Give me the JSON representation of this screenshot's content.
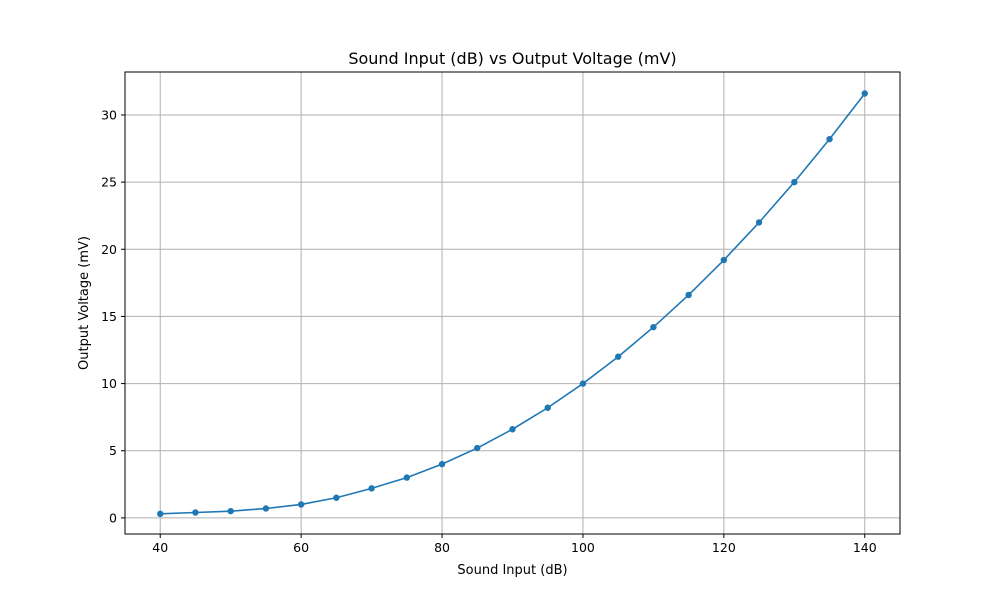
{
  "chart_data": {
    "type": "line",
    "title": "Sound Input (dB) vs Output Voltage (mV)",
    "xlabel": "Sound Input (dB)",
    "ylabel": "Output Voltage (mV)",
    "xlim": [
      35,
      145
    ],
    "ylim": [
      -1.2,
      33.2
    ],
    "xticks": [
      40,
      60,
      80,
      100,
      120,
      140
    ],
    "yticks": [
      0,
      5,
      10,
      15,
      20,
      25,
      30
    ],
    "grid": true,
    "color": "#1f77b4",
    "series": [
      {
        "x": [
          40,
          45,
          50,
          55,
          60,
          65,
          70,
          75,
          80,
          85,
          90,
          95,
          100,
          105,
          110,
          115,
          120,
          125,
          130,
          135,
          140
        ],
        "y": [
          0.3,
          0.4,
          0.5,
          0.7,
          1.0,
          1.5,
          2.2,
          3.0,
          4.0,
          5.2,
          6.6,
          8.2,
          10.0,
          12.0,
          14.2,
          16.6,
          19.2,
          22.0,
          25.0,
          28.2,
          31.6
        ]
      }
    ]
  }
}
